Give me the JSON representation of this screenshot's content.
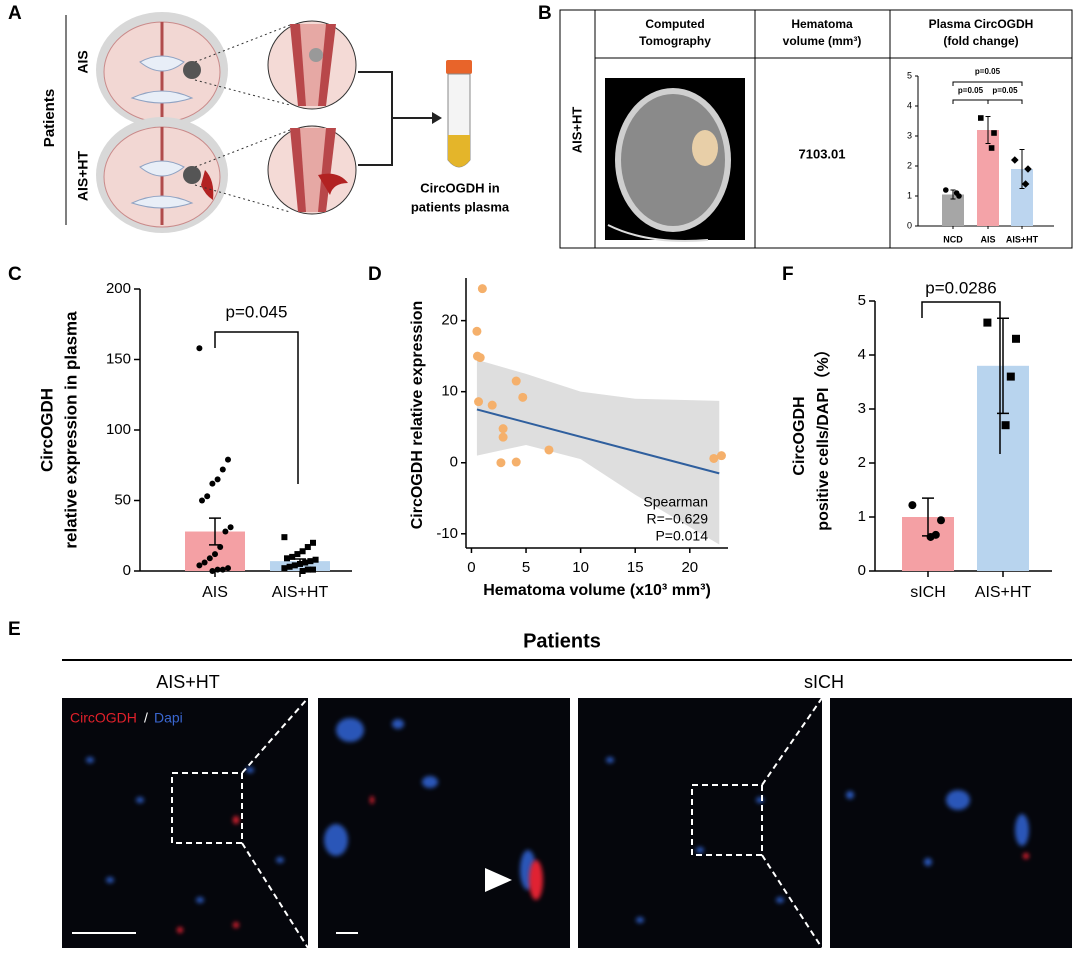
{
  "panel_labels": [
    "A",
    "B",
    "C",
    "D",
    "E",
    "F"
  ],
  "panel_a": {
    "group_title": "Patients",
    "groups": [
      "AIS",
      "AIS+HT"
    ],
    "result": [
      "CircOGDH in",
      "patients plasma"
    ]
  },
  "panel_b": {
    "headers": [
      [
        "Computed",
        "Tomography"
      ],
      [
        "Hematoma",
        "volume (mm³)"
      ],
      [
        "Plasma CircOGDH",
        "(fold change)"
      ]
    ],
    "row_label": "AIS+HT",
    "volume": "7103.01"
  },
  "panel_e": {
    "title": "Patients",
    "groups": [
      "AIS+HT",
      "sICH"
    ],
    "legend": [
      "CircOGDH",
      "/",
      "Dapi"
    ]
  },
  "chart_data": [
    {
      "type": "bar",
      "categories": [
        "NCD",
        "AIS",
        "AIS+HT"
      ],
      "values": [
        1.05,
        3.2,
        1.9
      ],
      "errors": [
        0.15,
        0.45,
        0.65
      ],
      "points": [
        [
          1.2,
          1.0,
          1.1
        ],
        [
          3.6,
          3.1,
          2.6
        ],
        [
          2.2,
          1.9,
          1.4
        ]
      ],
      "markers": [
        "circle",
        "square",
        "diamond"
      ],
      "colors": [
        "#a6a6a6",
        "#f4a3a8",
        "#bcd5ef"
      ],
      "ylim": [
        0,
        5
      ],
      "yticks": [
        0,
        1,
        2,
        3,
        4,
        5
      ],
      "ylabel": [],
      "annotations": [
        "p=0.05",
        "p=0.05",
        "p=0.05"
      ]
    },
    {
      "type": "bar",
      "categories": [
        "AIS",
        "AIS+HT"
      ],
      "values": [
        28,
        7
      ],
      "errors": [
        9.5,
        1.5
      ],
      "points": [
        [
          158,
          79,
          72,
          65,
          62,
          53,
          50,
          31,
          28,
          17,
          12,
          9,
          6,
          4,
          2,
          1,
          1,
          0
        ],
        [
          24,
          20,
          17,
          14,
          12,
          10,
          9,
          8,
          7,
          6,
          5,
          4,
          3,
          2,
          1,
          1,
          0
        ]
      ],
      "markers": [
        "circle",
        "square"
      ],
      "colors": [
        "#f4a0a4",
        "#b8d4ee"
      ],
      "ylim": [
        0,
        200
      ],
      "yticks": [
        0,
        50,
        100,
        150,
        200
      ],
      "ylabel": [
        "CircOGDH",
        "relative expression in plasma"
      ],
      "annotations": [
        "p=0.045"
      ]
    },
    {
      "type": "scatter",
      "xlabel": "Hematoma volume (x10³ mm³)",
      "ylabel": "CircOGDH relative expression",
      "x": [
        1.0,
        0.5,
        0.55,
        0.8,
        0.65,
        1.9,
        4.1,
        4.7,
        2.9,
        2.9,
        2.7,
        4.1,
        7.1,
        22.2,
        22.9
      ],
      "values": [
        24.5,
        18.5,
        15,
        14.8,
        8.6,
        8.1,
        11.5,
        9.2,
        4.8,
        3.6,
        0,
        0.1,
        1.8,
        0.6,
        1.0
      ],
      "color": "#f5b06b",
      "fit": {
        "x": [
          0.5,
          22.7
        ],
        "values": [
          7.5,
          -1.5
        ],
        "color": "#2f5f9e"
      },
      "band": {
        "x": [
          0.5,
          5,
          10,
          15,
          22.7
        ],
        "upper": [
          14.5,
          12.5,
          10,
          9,
          8.7
        ],
        "lower": [
          1,
          2.5,
          0.5,
          -4.5,
          -11.5
        ],
        "color": "#dedede"
      },
      "xlim": [
        -0.5,
        23.5
      ],
      "ylim": [
        -12,
        26
      ],
      "xticks": [
        0,
        5,
        10,
        15,
        20
      ],
      "yticks": [
        -10,
        0,
        10,
        20
      ],
      "annotations": [
        "Spearman",
        "R=−0.629",
        "P=0.014"
      ]
    },
    {
      "type": "bar",
      "categories": [
        "sICH",
        "AIS+HT"
      ],
      "values": [
        1.0,
        3.8
      ],
      "errors": [
        0.35,
        0.88
      ],
      "points": [
        [
          1.22,
          0.94,
          0.67,
          0.63
        ],
        [
          4.6,
          4.3,
          3.6,
          2.7
        ]
      ],
      "markers": [
        "circle",
        "square"
      ],
      "colors": [
        "#f4a0a4",
        "#b8d4ee"
      ],
      "ylim": [
        0,
        5
      ],
      "yticks": [
        0,
        1,
        2,
        3,
        4,
        5
      ],
      "ylabel": [
        "CircOGDH",
        "positive cells/DAPI（%）"
      ],
      "annotations": [
        "p=0.0286"
      ]
    }
  ]
}
